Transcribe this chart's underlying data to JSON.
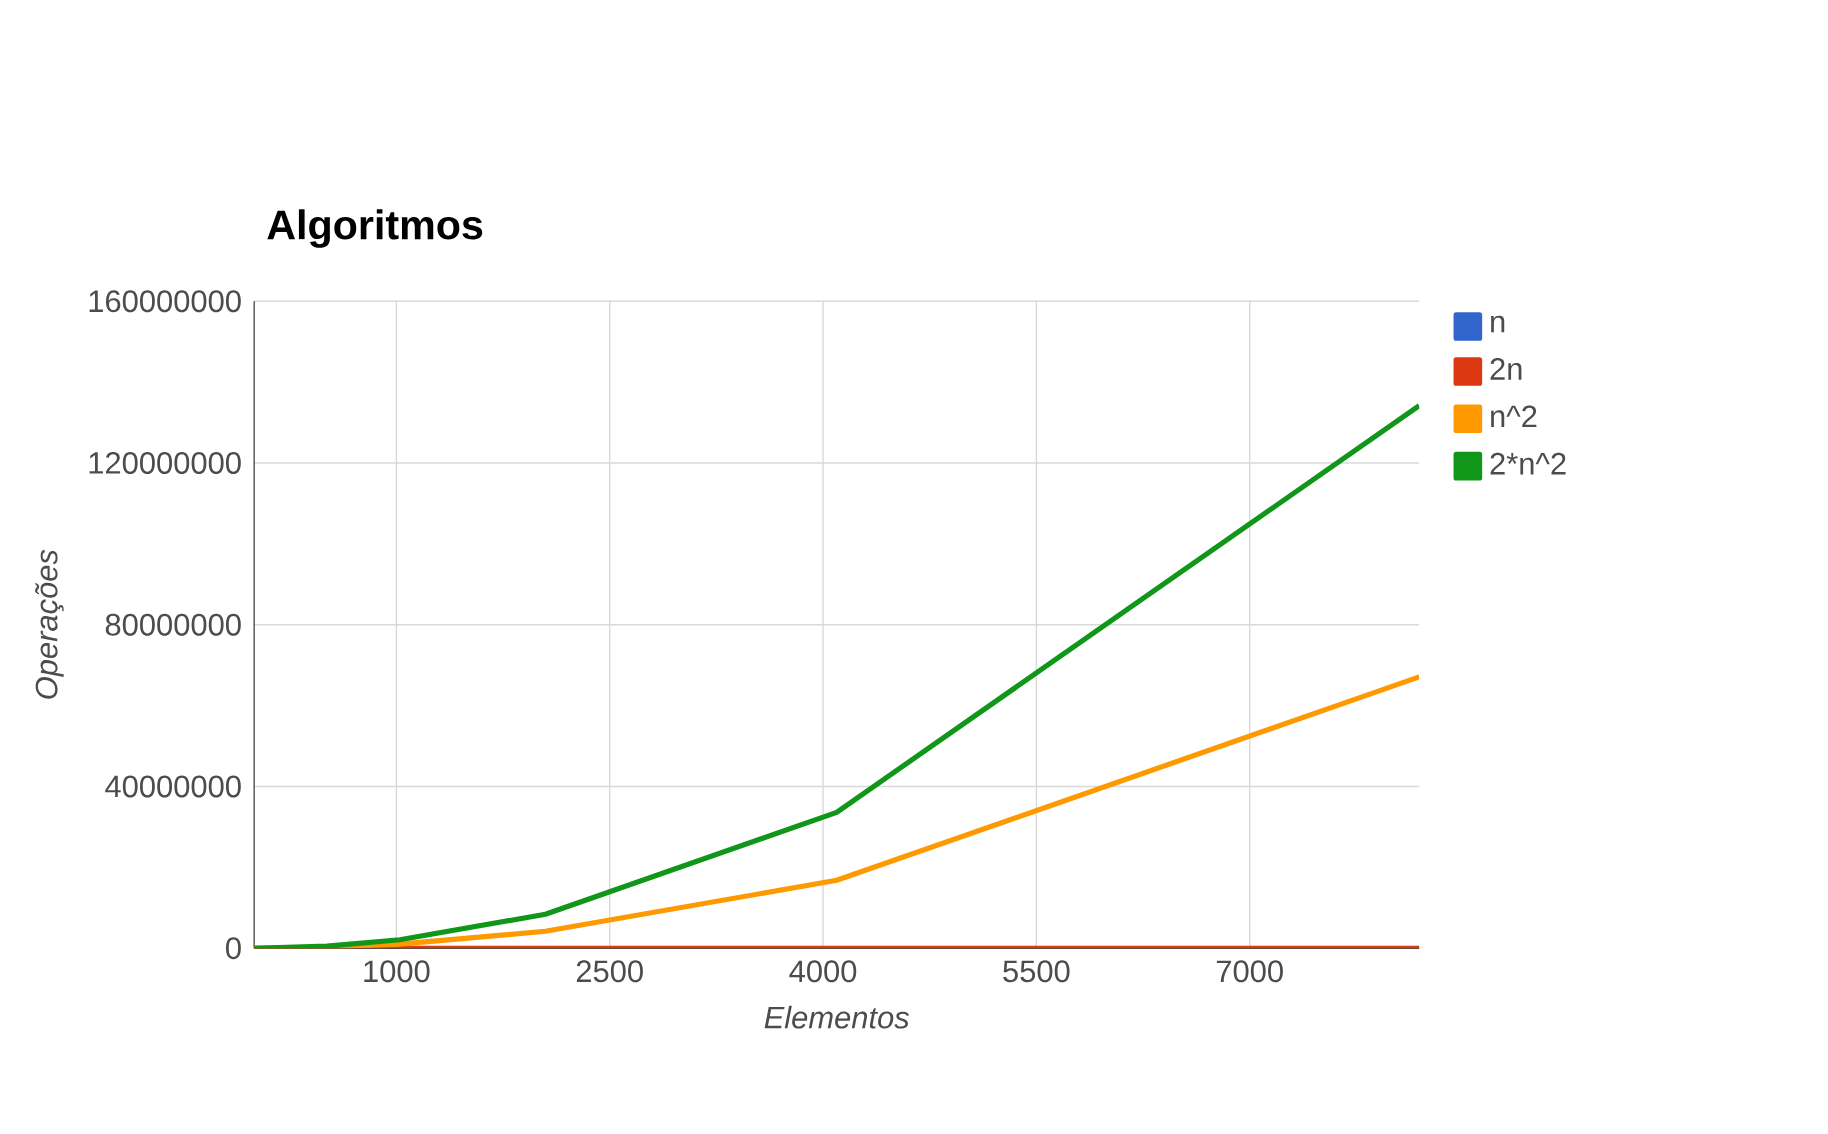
{
  "chart_data": {
    "type": "line",
    "title": "Algoritmos",
    "xlabel": "Elementos",
    "ylabel": "Operações",
    "x": [
      0,
      512,
      1024,
      2048,
      4096,
      8192
    ],
    "series": [
      {
        "name": "n",
        "color": "#3366cc",
        "values": [
          null,
          null,
          null,
          null,
          null,
          null
        ]
      },
      {
        "name": "2n",
        "color": "#dc3912",
        "values": [
          0,
          0,
          0,
          0,
          0,
          0
        ]
      },
      {
        "name": "n^2",
        "color": "#ff9900",
        "values": [
          0,
          300000,
          1000000,
          4200000,
          16800000,
          67100000
        ]
      },
      {
        "name": "2*n^2",
        "color": "#109618",
        "values": [
          0,
          500000,
          2100000,
          8400000,
          33600000,
          134200000
        ]
      }
    ],
    "xlim": [
      0,
      8192
    ],
    "xticks": [
      1000,
      2500,
      4000,
      5500,
      7000
    ],
    "ylim": [
      0,
      160000000
    ],
    "yticks": [
      0,
      40000000,
      80000000,
      120000000,
      160000000
    ],
    "grid": true,
    "legend": "right",
    "marker": "none",
    "line_style": "solid"
  }
}
